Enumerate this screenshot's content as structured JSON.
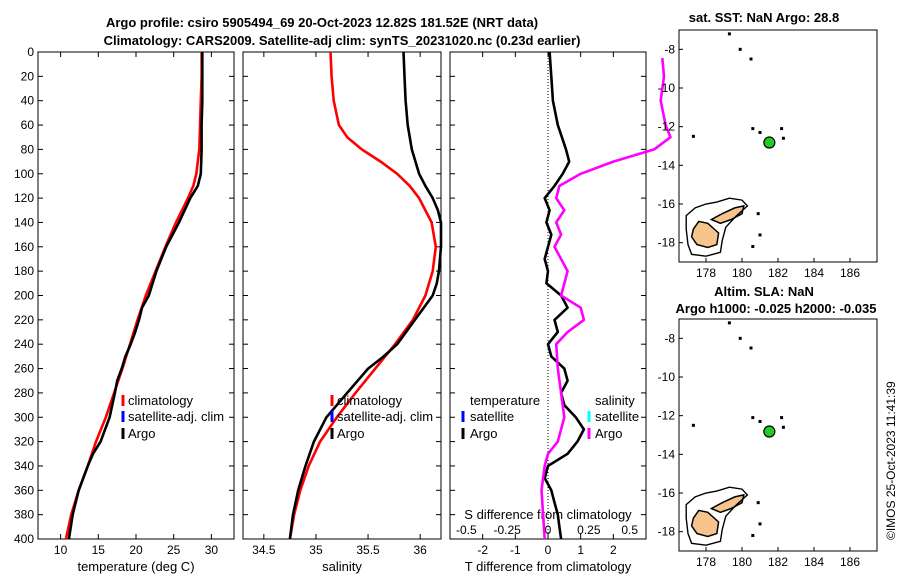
{
  "titles": {
    "line1": "Argo profile: csiro 5905494_69 20-Oct-2023 12.82S 181.52E (NRT data)",
    "line2": "Climatology: CARS2009. Satellite-adj clim: synTS_20231020.nc (0.23d earlier)",
    "sst": "sat. SST: NaN Argo: 28.8",
    "sla1": "Altim. SLA: NaN",
    "sla2": "Argo h1000: -0.025 h2000: -0.035",
    "stamp": "©IMOS 25-Oct-2023 11:41:39"
  },
  "legend": {
    "climatology": "climatology",
    "satellite_adj": "satellite-adj. clim",
    "argo": "Argo",
    "temperature": "temperature",
    "salinity": "salinity",
    "satellite": "satellite"
  },
  "colors": {
    "climatology": "#ff0000",
    "satellite": "#0000ff",
    "argo": "#000000",
    "salinity_diff": "#ff00ff",
    "salinity_sat": "#00ffff",
    "land": "#f7c48e",
    "float": "#22cc22"
  },
  "chart_data": [
    {
      "id": "temperature",
      "type": "line",
      "xlabel": "temperature (deg C)",
      "xlim": [
        7,
        33
      ],
      "xticks": [
        10,
        15,
        20,
        25,
        30
      ],
      "ylim": [
        400,
        0
      ],
      "yticks": [
        0,
        20,
        40,
        60,
        80,
        100,
        120,
        140,
        160,
        180,
        200,
        220,
        240,
        260,
        280,
        300,
        320,
        340,
        360,
        380,
        400
      ],
      "series": [
        {
          "name": "climatology",
          "color": "#ff0000",
          "depth": [
            0,
            20,
            40,
            60,
            80,
            100,
            110,
            120,
            140,
            160,
            180,
            200,
            220,
            240,
            260,
            280,
            300,
            320,
            340,
            360,
            380,
            400
          ],
          "values": [
            28.7,
            28.7,
            28.6,
            28.5,
            28.4,
            28.0,
            27.6,
            26.9,
            25.3,
            23.9,
            22.6,
            21.3,
            20.2,
            19.2,
            18.2,
            17.1,
            16.0,
            14.7,
            13.6,
            12.4,
            11.4,
            10.7
          ]
        },
        {
          "name": "Argo",
          "color": "#000000",
          "depth": [
            0,
            20,
            40,
            60,
            80,
            100,
            110,
            120,
            140,
            160,
            180,
            200,
            210,
            220,
            230,
            240,
            250,
            260,
            270,
            280,
            300,
            320,
            330,
            340,
            360,
            380,
            400
          ],
          "values": [
            28.8,
            28.8,
            28.8,
            28.7,
            28.7,
            28.6,
            28.2,
            27.2,
            25.7,
            24.0,
            22.7,
            21.7,
            20.8,
            20.4,
            19.9,
            19.3,
            18.6,
            18.1,
            17.5,
            17.2,
            16.5,
            15.3,
            14.3,
            13.6,
            12.4,
            11.6,
            11.1
          ]
        }
      ]
    },
    {
      "id": "salinity",
      "type": "line",
      "xlabel": "salinity",
      "xlim": [
        34.3,
        36.2
      ],
      "xticks": [
        34.5,
        35,
        35.5,
        36
      ],
      "xticklabels": [
        "34.5",
        "35",
        "35.5",
        "36"
      ],
      "ylim": [
        400,
        0
      ],
      "series": [
        {
          "name": "climatology",
          "color": "#ff0000",
          "depth": [
            0,
            20,
            40,
            60,
            70,
            80,
            90,
            100,
            110,
            120,
            140,
            160,
            180,
            200,
            220,
            240,
            260,
            280,
            300,
            320,
            340,
            360,
            380,
            400
          ],
          "values": [
            35.14,
            35.15,
            35.17,
            35.22,
            35.3,
            35.44,
            35.62,
            35.78,
            35.9,
            35.99,
            36.11,
            36.15,
            36.12,
            36.05,
            35.93,
            35.76,
            35.57,
            35.38,
            35.2,
            35.04,
            34.93,
            34.85,
            34.79,
            34.75
          ]
        },
        {
          "name": "Argo",
          "color": "#000000",
          "depth": [
            0,
            20,
            40,
            60,
            80,
            100,
            110,
            120,
            130,
            140,
            160,
            180,
            190,
            200,
            220,
            240,
            250,
            260,
            280,
            300,
            320,
            340,
            360,
            380,
            400
          ],
          "values": [
            35.84,
            35.85,
            35.86,
            35.88,
            35.92,
            35.99,
            36.05,
            36.12,
            36.17,
            36.2,
            36.2,
            36.18,
            36.16,
            36.12,
            35.95,
            35.78,
            35.65,
            35.5,
            35.3,
            35.1,
            34.98,
            34.9,
            34.83,
            34.78,
            34.75
          ]
        }
      ]
    },
    {
      "id": "differences",
      "type": "line",
      "xlabel": "T difference from climatology",
      "xlim": [
        -3,
        3
      ],
      "xticks": [
        -2,
        -1,
        0,
        1,
        2
      ],
      "x2label": "S difference from climatology",
      "x2ticks": [
        -0.5,
        -0.25,
        0,
        0.25,
        0.5
      ],
      "x2ticklabels": [
        "-0.5",
        "-0.25",
        "0",
        "0.25",
        "0.5"
      ],
      "ylim": [
        400,
        0
      ],
      "series": [
        {
          "name": "temperature",
          "color": "#000000",
          "depth": [
            0,
            20,
            40,
            60,
            80,
            90,
            100,
            110,
            120,
            130,
            140,
            150,
            160,
            170,
            180,
            190,
            200,
            210,
            220,
            230,
            240,
            250,
            260,
            270,
            280,
            290,
            300,
            310,
            320,
            330,
            340,
            350,
            360,
            370,
            380,
            390,
            400
          ],
          "values": [
            0.05,
            0.1,
            0.15,
            0.3,
            0.55,
            0.65,
            0.45,
            0.2,
            -0.1,
            0.05,
            -0.05,
            0.1,
            0.0,
            -0.1,
            0.0,
            -0.05,
            0.4,
            0.6,
            0.2,
            0.3,
            0.0,
            0.1,
            0.5,
            0.6,
            0.4,
            0.5,
            0.85,
            1.1,
            0.9,
            0.6,
            0.0,
            -0.1,
            0.1,
            0.2,
            0.3,
            0.35,
            0.4
          ]
        },
        {
          "name": "salinity",
          "color": "#ff00ff",
          "depth": [
            5,
            20,
            40,
            60,
            70,
            80,
            90,
            100,
            110,
            120,
            130,
            140,
            150,
            160,
            180,
            200,
            210,
            220,
            230,
            240,
            260,
            280,
            300,
            320,
            330,
            340,
            360,
            380,
            400
          ],
          "values": [
            0.7,
            0.71,
            0.69,
            0.72,
            0.75,
            0.65,
            0.4,
            0.2,
            0.07,
            0.05,
            0.1,
            0.05,
            0.08,
            0.04,
            0.12,
            0.08,
            0.2,
            0.22,
            0.12,
            0.05,
            0.06,
            0.08,
            0.1,
            0.06,
            0.0,
            -0.02,
            -0.04,
            -0.03,
            -0.02
          ]
        }
      ]
    },
    {
      "id": "sst_map",
      "type": "scatter",
      "xlim": [
        176.5,
        187.5
      ],
      "xticks": [
        178,
        180,
        182,
        184,
        186
      ],
      "ylim": [
        -19,
        -7
      ],
      "yticks": [
        -8,
        -10,
        -12,
        -14,
        -16,
        -18
      ],
      "float": {
        "lon": 181.52,
        "lat": -12.82
      }
    },
    {
      "id": "sla_map",
      "type": "scatter",
      "xlim": [
        176.5,
        187.5
      ],
      "xticks": [
        178,
        180,
        182,
        184,
        186
      ],
      "ylim": [
        -19,
        -7
      ],
      "yticks": [
        -8,
        -10,
        -12,
        -14,
        -16,
        -18
      ],
      "float": {
        "lon": 181.52,
        "lat": -12.82
      }
    }
  ]
}
